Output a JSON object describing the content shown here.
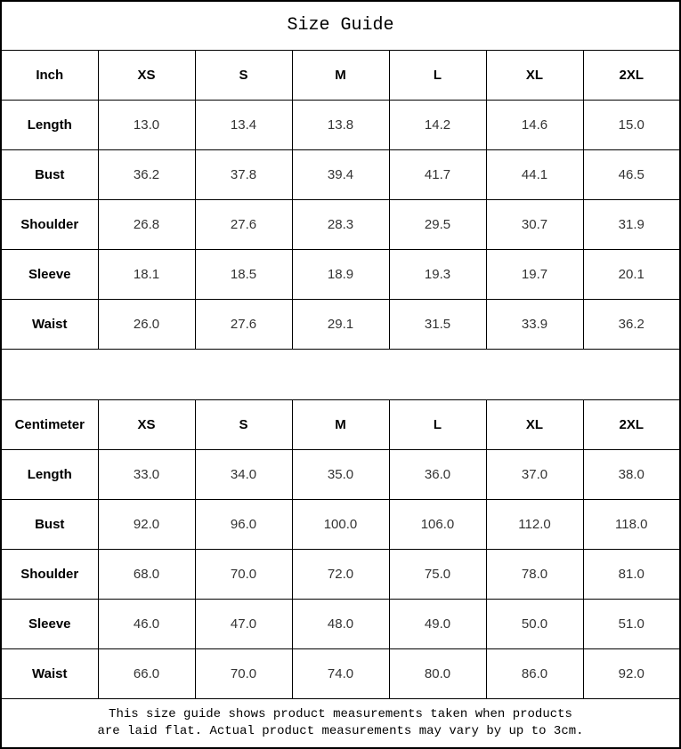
{
  "title": "Size Guide",
  "sizes": [
    "XS",
    "S",
    "M",
    "L",
    "XL",
    "2XL"
  ],
  "inch_table": {
    "unit_label": "Inch",
    "rows": [
      {
        "label": "Length",
        "values": [
          "13.0",
          "13.4",
          "13.8",
          "14.2",
          "14.6",
          "15.0"
        ]
      },
      {
        "label": "Bust",
        "values": [
          "36.2",
          "37.8",
          "39.4",
          "41.7",
          "44.1",
          "46.5"
        ]
      },
      {
        "label": "Shoulder",
        "values": [
          "26.8",
          "27.6",
          "28.3",
          "29.5",
          "30.7",
          "31.9"
        ]
      },
      {
        "label": "Sleeve",
        "values": [
          "18.1",
          "18.5",
          "18.9",
          "19.3",
          "19.7",
          "20.1"
        ]
      },
      {
        "label": "Waist",
        "values": [
          "26.0",
          "27.6",
          "29.1",
          "31.5",
          "33.9",
          "36.2"
        ]
      }
    ]
  },
  "cm_table": {
    "unit_label": "Centimeter",
    "rows": [
      {
        "label": "Length",
        "values": [
          "33.0",
          "34.0",
          "35.0",
          "36.0",
          "37.0",
          "38.0"
        ]
      },
      {
        "label": "Bust",
        "values": [
          "92.0",
          "96.0",
          "100.0",
          "106.0",
          "112.0",
          "118.0"
        ]
      },
      {
        "label": "Shoulder",
        "values": [
          "68.0",
          "70.0",
          "72.0",
          "75.0",
          "78.0",
          "81.0"
        ]
      },
      {
        "label": "Sleeve",
        "values": [
          "46.0",
          "47.0",
          "48.0",
          "49.0",
          "50.0",
          "51.0"
        ]
      },
      {
        "label": "Waist",
        "values": [
          "66.0",
          "70.0",
          "74.0",
          "80.0",
          "86.0",
          "92.0"
        ]
      }
    ]
  },
  "footer": {
    "line1": "This size guide shows product measurements taken when products",
    "line2": "are laid flat. Actual product measurements may vary by up to 3cm."
  },
  "colors": {
    "border": "#000000",
    "header_text": "#000000",
    "value_text": "#333333",
    "background": "#ffffff"
  }
}
